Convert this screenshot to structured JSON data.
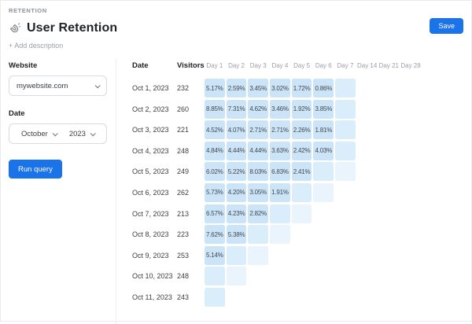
{
  "breadcrumb": "RETENTION",
  "header": {
    "title": "User Retention",
    "title_icon": "magnet-icon",
    "save_label": "Save",
    "add_description_label": "+ Add description"
  },
  "filters": {
    "website_label": "Website",
    "website_value": "mywebsite.com",
    "date_label": "Date",
    "month_value": "October",
    "year_value": "2023",
    "run_button_label": "Run query"
  },
  "table": {
    "date_header": "Date",
    "visitors_header": "Visitors",
    "day_headers": [
      "Day 1",
      "Day 2",
      "Day 3",
      "Day 4",
      "Day 5",
      "Day 6",
      "Day 7",
      "Day 14",
      "Day 21",
      "Day 28"
    ],
    "rows": [
      {
        "date": "Oct 1, 2023",
        "visitors": "232",
        "values": [
          "5.17%",
          "2.59%",
          "3.45%",
          "3.02%",
          "1.72%",
          "0.86%"
        ],
        "pending": 1
      },
      {
        "date": "Oct 2, 2023",
        "visitors": "260",
        "values": [
          "8.85%",
          "7.31%",
          "4.62%",
          "3.46%",
          "1.92%",
          "3.85%"
        ],
        "pending": 1
      },
      {
        "date": "Oct 3, 2023",
        "visitors": "221",
        "values": [
          "4.52%",
          "4.07%",
          "2.71%",
          "2.71%",
          "2.26%",
          "1.81%"
        ],
        "pending": 1
      },
      {
        "date": "Oct 4, 2023",
        "visitors": "248",
        "values": [
          "4.84%",
          "4.44%",
          "4.44%",
          "3.63%",
          "2.42%",
          "4.03%"
        ],
        "pending": 1
      },
      {
        "date": "Oct 5, 2023",
        "visitors": "249",
        "values": [
          "6.02%",
          "5.22%",
          "8.03%",
          "6.83%",
          "2.41%"
        ],
        "pending": 2
      },
      {
        "date": "Oct 6, 2023",
        "visitors": "262",
        "values": [
          "5.73%",
          "4.20%",
          "3.05%",
          "1.91%"
        ],
        "pending": 2
      },
      {
        "date": "Oct 7, 2023",
        "visitors": "213",
        "values": [
          "6.57%",
          "4.23%",
          "2.82%"
        ],
        "pending": 2
      },
      {
        "date": "Oct 8, 2023",
        "visitors": "223",
        "values": [
          "7.62%",
          "5.38%"
        ],
        "pending": 2
      },
      {
        "date": "Oct 9, 2023",
        "visitors": "253",
        "values": [
          "5.14%"
        ],
        "pending": 2
      },
      {
        "date": "Oct 10, 2023",
        "visitors": "248",
        "values": [],
        "pending": 2
      },
      {
        "date": "Oct 11, 2023",
        "visitors": "243",
        "values": [],
        "pending": 1
      }
    ]
  },
  "colors": {
    "accent": "#1a73e8",
    "cell_filled": "#cbe4f8",
    "cell_pending_1": "#daedfb",
    "cell_pending_2": "#e9f4fd"
  },
  "icons": {
    "select_chevron": "chevron-down-icon"
  }
}
